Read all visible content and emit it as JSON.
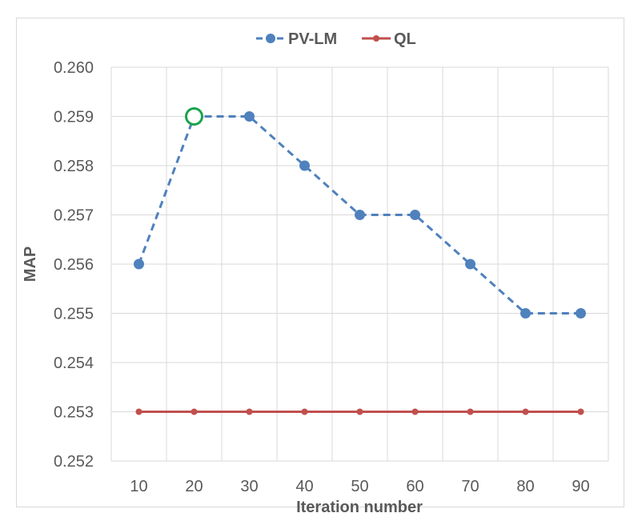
{
  "chart_data": {
    "type": "line",
    "title": "",
    "xlabel": "Iteration number",
    "ylabel": "MAP",
    "categories": [
      "10",
      "20",
      "30",
      "40",
      "50",
      "60",
      "70",
      "80",
      "90"
    ],
    "y_ticks": [
      "0.252",
      "0.253",
      "0.254",
      "0.255",
      "0.256",
      "0.257",
      "0.258",
      "0.259",
      "0.260"
    ],
    "ylim": [
      0.252,
      0.26
    ],
    "grid": true,
    "legend_position": "top",
    "series": [
      {
        "name": "PV-LM",
        "color": "#4f81bd",
        "line_style": "dashed",
        "marker": "circle",
        "values": [
          0.256,
          0.259,
          0.259,
          0.258,
          0.257,
          0.257,
          0.256,
          0.255,
          0.255
        ],
        "highlight_index": 1,
        "highlight_color": "#1aa34a"
      },
      {
        "name": "QL",
        "color": "#c0504d",
        "line_style": "solid",
        "marker": "circle",
        "values": [
          0.253,
          0.253,
          0.253,
          0.253,
          0.253,
          0.253,
          0.253,
          0.253,
          0.253
        ]
      }
    ]
  }
}
